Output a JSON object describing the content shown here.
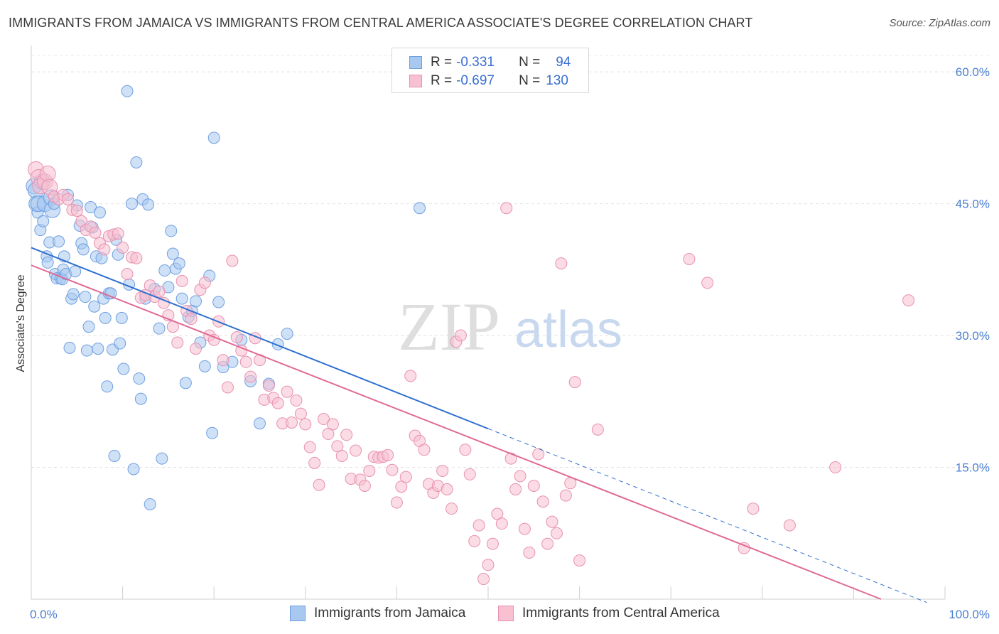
{
  "header": {
    "title": "IMMIGRANTS FROM JAMAICA VS IMMIGRANTS FROM CENTRAL AMERICA ASSOCIATE'S DEGREE CORRELATION CHART",
    "source": "Source: ZipAtlas.com"
  },
  "watermark": {
    "zip": "ZIP",
    "atlas": "atlas"
  },
  "legend": {
    "r_label": "R =",
    "n_label": "N =",
    "rows": [
      {
        "r": "-0.331",
        "n": "94",
        "color": "#a8c8f0",
        "border": "#6f9fe0"
      },
      {
        "r": "-0.697",
        "n": "130",
        "color": "#f8c0d0",
        "border": "#e890b0"
      }
    ]
  },
  "chart_data": {
    "type": "scatter",
    "title": "IMMIGRANTS FROM JAMAICA VS IMMIGRANTS FROM CENTRAL AMERICA ASSOCIATE'S DEGREE CORRELATION CHART",
    "xlabel": "",
    "ylabel": "Associate's Degree",
    "xlim": [
      0,
      100
    ],
    "ylim": [
      0,
      63
    ],
    "x_tick_labels": [
      "0.0%",
      "100.0%"
    ],
    "y_ticks": [
      15,
      30,
      45,
      60
    ],
    "y_tick_labels": [
      "15.0%",
      "30.0%",
      "45.0%",
      "60.0%"
    ],
    "grid": true,
    "series": [
      {
        "name": "Immigrants from Jamaica",
        "color": "#a8c8f0",
        "stroke": "#6f9fe0",
        "line_color": "#2f6fd0",
        "trend": {
          "x0": 0,
          "y0": 40.0,
          "x1": 50,
          "y1": 19.4,
          "dash_to_x": 98
        },
        "points": [
          [
            0.3,
            47.0
          ],
          [
            0.5,
            46.5
          ],
          [
            0.6,
            45.0
          ],
          [
            0.7,
            44.0
          ],
          [
            0.8,
            45.0
          ],
          [
            1.0,
            42.0
          ],
          [
            1.2,
            47.5
          ],
          [
            1.3,
            43.0
          ],
          [
            1.5,
            45.0
          ],
          [
            1.7,
            39.0
          ],
          [
            1.8,
            38.3
          ],
          [
            2.0,
            40.6
          ],
          [
            2.2,
            45.7
          ],
          [
            2.3,
            44.3
          ],
          [
            2.5,
            45.0
          ],
          [
            2.6,
            37.0
          ],
          [
            2.8,
            36.5
          ],
          [
            3.0,
            40.7
          ],
          [
            3.2,
            36.5
          ],
          [
            3.4,
            36.4
          ],
          [
            3.5,
            37.5
          ],
          [
            3.6,
            39.0
          ],
          [
            3.8,
            37.0
          ],
          [
            4.0,
            46.0
          ],
          [
            4.2,
            28.6
          ],
          [
            4.4,
            34.2
          ],
          [
            4.6,
            34.7
          ],
          [
            4.8,
            37.3
          ],
          [
            5.0,
            44.8
          ],
          [
            5.3,
            42.5
          ],
          [
            5.5,
            40.5
          ],
          [
            5.7,
            39.8
          ],
          [
            5.9,
            34.4
          ],
          [
            6.1,
            28.3
          ],
          [
            6.3,
            31.0
          ],
          [
            6.5,
            44.6
          ],
          [
            6.7,
            42.3
          ],
          [
            6.9,
            33.3
          ],
          [
            7.1,
            39.0
          ],
          [
            7.3,
            28.5
          ],
          [
            7.5,
            44.0
          ],
          [
            7.7,
            38.8
          ],
          [
            7.9,
            34.2
          ],
          [
            8.1,
            32.0
          ],
          [
            8.3,
            24.2
          ],
          [
            8.5,
            34.8
          ],
          [
            8.7,
            34.8
          ],
          [
            8.9,
            28.4
          ],
          [
            9.1,
            16.3
          ],
          [
            9.3,
            40.9
          ],
          [
            9.5,
            39.2
          ],
          [
            9.7,
            29.1
          ],
          [
            9.9,
            32.0
          ],
          [
            10.1,
            26.2
          ],
          [
            10.5,
            57.8
          ],
          [
            10.7,
            35.8
          ],
          [
            11.0,
            45.0
          ],
          [
            11.2,
            14.8
          ],
          [
            11.5,
            49.7
          ],
          [
            11.8,
            25.1
          ],
          [
            12.0,
            22.8
          ],
          [
            12.2,
            45.5
          ],
          [
            12.5,
            34.2
          ],
          [
            12.8,
            44.9
          ],
          [
            13.0,
            10.8
          ],
          [
            13.5,
            35.3
          ],
          [
            14.0,
            30.8
          ],
          [
            14.3,
            16.0
          ],
          [
            14.6,
            37.4
          ],
          [
            15.0,
            35.5
          ],
          [
            15.3,
            41.9
          ],
          [
            15.5,
            39.3
          ],
          [
            15.8,
            37.6
          ],
          [
            16.2,
            38.2
          ],
          [
            16.5,
            34.2
          ],
          [
            16.9,
            24.6
          ],
          [
            17.2,
            32.1
          ],
          [
            17.6,
            32.8
          ],
          [
            18.0,
            33.9
          ],
          [
            18.5,
            29.2
          ],
          [
            19.0,
            26.5
          ],
          [
            19.5,
            36.8
          ],
          [
            19.8,
            18.9
          ],
          [
            20.0,
            52.5
          ],
          [
            20.5,
            33.8
          ],
          [
            21.0,
            26.4
          ],
          [
            22.0,
            27.0
          ],
          [
            23.0,
            29.5
          ],
          [
            24.0,
            24.8
          ],
          [
            25.0,
            20.0
          ],
          [
            26.0,
            24.5
          ],
          [
            27.0,
            29.0
          ],
          [
            28.0,
            30.2
          ],
          [
            42.5,
            44.5
          ]
        ]
      },
      {
        "name": "Immigrants from Central America",
        "color": "#f8c0d0",
        "stroke": "#e890b0",
        "line_color": "#e06a96",
        "trend": {
          "x0": 0,
          "y0": 38.0,
          "x1": 93,
          "y1": 0
        },
        "points": [
          [
            0.5,
            48.9
          ],
          [
            0.8,
            48.0
          ],
          [
            1.0,
            47.0
          ],
          [
            1.5,
            47.5
          ],
          [
            1.8,
            48.4
          ],
          [
            2.0,
            46.9
          ],
          [
            2.5,
            45.8
          ],
          [
            3.0,
            45.5
          ],
          [
            3.5,
            46.0
          ],
          [
            4.0,
            45.5
          ],
          [
            4.5,
            44.3
          ],
          [
            5.0,
            44.2
          ],
          [
            5.5,
            43.0
          ],
          [
            6.0,
            42.0
          ],
          [
            6.5,
            42.4
          ],
          [
            7.0,
            41.7
          ],
          [
            7.5,
            40.5
          ],
          [
            8.0,
            39.8
          ],
          [
            8.5,
            41.3
          ],
          [
            9.0,
            41.5
          ],
          [
            9.5,
            41.6
          ],
          [
            10.0,
            40.0
          ],
          [
            10.5,
            37.0
          ],
          [
            11.0,
            38.9
          ],
          [
            11.5,
            38.8
          ],
          [
            12.0,
            34.3
          ],
          [
            12.5,
            34.6
          ],
          [
            13.0,
            35.7
          ],
          [
            13.5,
            34.4
          ],
          [
            14.0,
            35.0
          ],
          [
            14.5,
            33.7
          ],
          [
            15.0,
            32.3
          ],
          [
            15.5,
            31.0
          ],
          [
            16.0,
            29.2
          ],
          [
            16.5,
            36.2
          ],
          [
            17.0,
            32.8
          ],
          [
            17.5,
            31.9
          ],
          [
            18.0,
            28.5
          ],
          [
            18.5,
            35.2
          ],
          [
            19.0,
            36.0
          ],
          [
            19.5,
            30.0
          ],
          [
            20.0,
            29.5
          ],
          [
            20.5,
            31.6
          ],
          [
            21.0,
            27.2
          ],
          [
            21.5,
            24.1
          ],
          [
            22.0,
            38.5
          ],
          [
            22.5,
            29.8
          ],
          [
            23.0,
            28.3
          ],
          [
            23.5,
            27.0
          ],
          [
            24.0,
            25.3
          ],
          [
            24.5,
            29.7
          ],
          [
            25.0,
            27.2
          ],
          [
            25.5,
            22.7
          ],
          [
            26.0,
            24.3
          ],
          [
            26.5,
            22.9
          ],
          [
            27.0,
            22.3
          ],
          [
            27.5,
            20.0
          ],
          [
            28.0,
            23.6
          ],
          [
            28.5,
            20.1
          ],
          [
            29.0,
            22.6
          ],
          [
            29.5,
            21.1
          ],
          [
            30.0,
            19.9
          ],
          [
            30.5,
            17.3
          ],
          [
            31.0,
            15.5
          ],
          [
            31.5,
            13.0
          ],
          [
            32.0,
            20.5
          ],
          [
            32.5,
            18.8
          ],
          [
            33.0,
            19.9
          ],
          [
            33.5,
            17.4
          ],
          [
            34.0,
            16.3
          ],
          [
            34.5,
            18.7
          ],
          [
            35.0,
            13.7
          ],
          [
            35.5,
            16.9
          ],
          [
            36.0,
            13.6
          ],
          [
            36.5,
            12.9
          ],
          [
            37.0,
            14.6
          ],
          [
            37.5,
            16.2
          ],
          [
            38.0,
            16.1
          ],
          [
            38.5,
            16.2
          ],
          [
            39.0,
            16.4
          ],
          [
            39.5,
            14.7
          ],
          [
            40.0,
            11.0
          ],
          [
            40.5,
            12.8
          ],
          [
            41.0,
            13.9
          ],
          [
            41.5,
            25.4
          ],
          [
            42.0,
            18.6
          ],
          [
            42.5,
            18.0
          ],
          [
            43.0,
            17.0
          ],
          [
            43.5,
            13.1
          ],
          [
            44.0,
            12.1
          ],
          [
            44.5,
            12.9
          ],
          [
            45.0,
            14.6
          ],
          [
            45.5,
            12.5
          ],
          [
            46.0,
            10.3
          ],
          [
            46.5,
            29.3
          ],
          [
            47.0,
            30.0
          ],
          [
            47.5,
            17.0
          ],
          [
            48.0,
            14.2
          ],
          [
            48.5,
            6.6
          ],
          [
            49.0,
            8.4
          ],
          [
            49.5,
            2.3
          ],
          [
            50.0,
            3.9
          ],
          [
            50.5,
            6.3
          ],
          [
            51.0,
            9.7
          ],
          [
            51.5,
            8.6
          ],
          [
            52.0,
            44.5
          ],
          [
            52.5,
            16.0
          ],
          [
            53.0,
            12.5
          ],
          [
            53.5,
            14.0
          ],
          [
            54.0,
            8.0
          ],
          [
            54.5,
            5.3
          ],
          [
            55.0,
            12.9
          ],
          [
            55.5,
            16.5
          ],
          [
            56.0,
            11.1
          ],
          [
            56.5,
            6.3
          ],
          [
            57.0,
            8.8
          ],
          [
            57.5,
            7.5
          ],
          [
            58.0,
            38.2
          ],
          [
            58.5,
            11.8
          ],
          [
            59.0,
            13.2
          ],
          [
            59.5,
            24.7
          ],
          [
            60.0,
            4.4
          ],
          [
            62.0,
            19.3
          ],
          [
            72.0,
            38.7
          ],
          [
            74.0,
            36.0
          ],
          [
            78.0,
            5.8
          ],
          [
            79.0,
            10.3
          ],
          [
            83.0,
            8.4
          ],
          [
            88.0,
            15.0
          ],
          [
            96.0,
            34.0
          ]
        ]
      }
    ]
  },
  "bottom_legend": {
    "items": [
      {
        "label": "Immigrants from Jamaica",
        "color": "#a8c8f0",
        "border": "#6f9fe0"
      },
      {
        "label": "Immigrants from Central America",
        "color": "#f8c0d0",
        "border": "#e890b0"
      }
    ]
  }
}
